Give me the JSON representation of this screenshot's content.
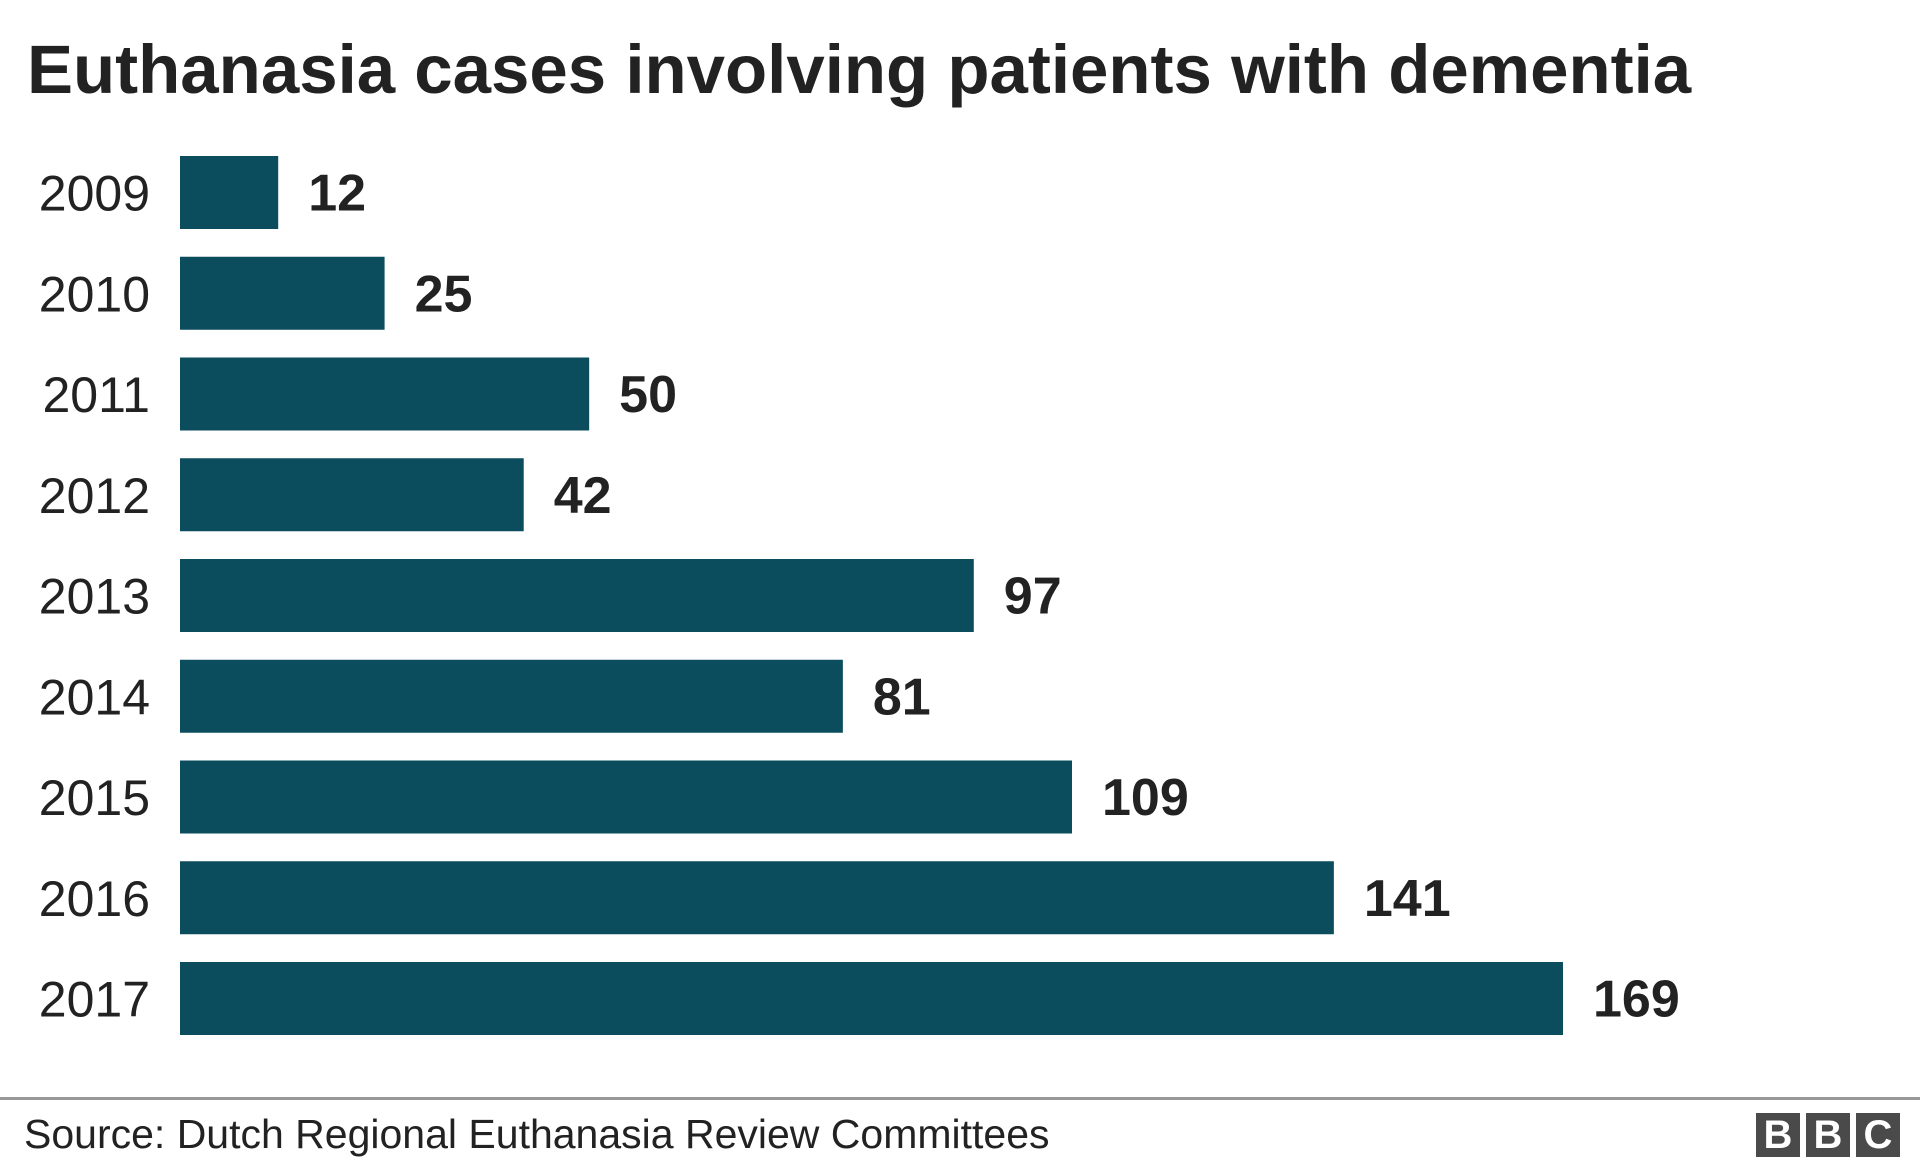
{
  "chart_data": {
    "type": "bar",
    "orientation": "horizontal",
    "title": "Euthanasia cases involving patients with dementia",
    "categories": [
      "2009",
      "2010",
      "2011",
      "2012",
      "2013",
      "2014",
      "2015",
      "2016",
      "2017"
    ],
    "values": [
      12,
      25,
      50,
      42,
      97,
      81,
      109,
      141,
      169
    ],
    "xlabel": "",
    "ylabel": "",
    "xlim": [
      0,
      169
    ],
    "grid": false,
    "bar_color": "#0b4d5c"
  },
  "footer": {
    "source": "Source: Dutch Regional Euthanasia Review Committees",
    "logo_letters": [
      "B",
      "B",
      "C"
    ]
  }
}
